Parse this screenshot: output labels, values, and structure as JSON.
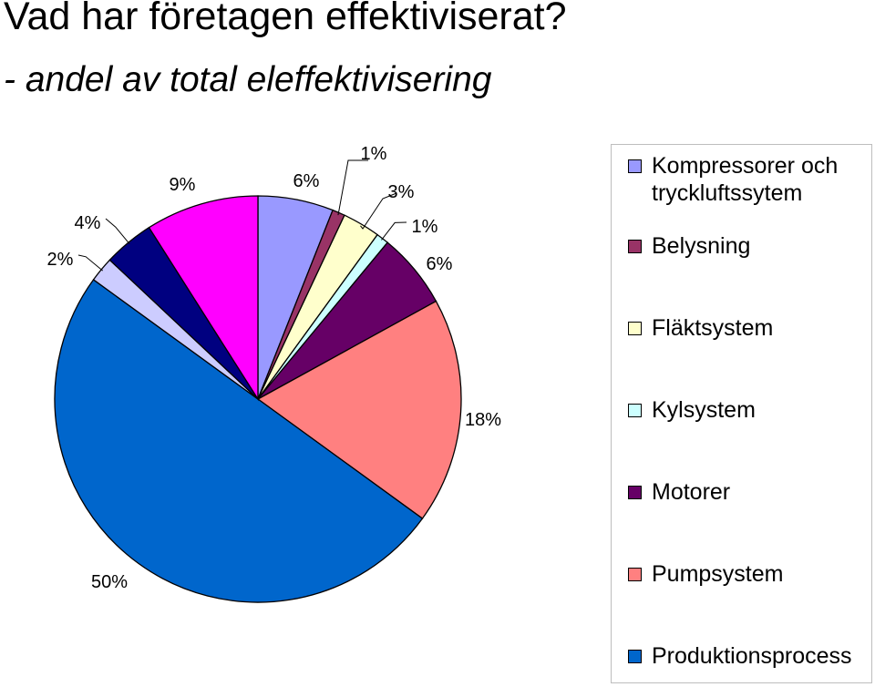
{
  "title": "Vad har företagen effektiviserat?",
  "subtitle": "- andel av total eleffektivisering",
  "chart_data": {
    "type": "pie",
    "series": [
      {
        "name": "Kompressorer och tryckluftssytem",
        "value": 6,
        "label": "6%",
        "color": "#9999FF"
      },
      {
        "name": "Belysning",
        "value": 1,
        "label": "1%",
        "color": "#993366"
      },
      {
        "name": "Fläktsystem",
        "value": 3,
        "label": "3%",
        "color": "#FFFFCC"
      },
      {
        "name": "Kylsystem",
        "value": 1,
        "label": "1%",
        "color": "#CCFFFF"
      },
      {
        "name": "Motorer",
        "value": 6,
        "label": "6%",
        "color": "#660066"
      },
      {
        "name": "Pumpsystem",
        "value": 18,
        "label": "18%",
        "color": "#FF8080"
      },
      {
        "name": "Produktionsprocess",
        "value": 50,
        "label": "50%",
        "color": "#0066CC"
      },
      {
        "name": "",
        "value": 2,
        "label": "2%",
        "color": "#CCCCFF"
      },
      {
        "name": "",
        "value": 4,
        "label": "4%",
        "color": "#000080"
      },
      {
        "name": "",
        "value": 9,
        "label": "9%",
        "color": "#FF00FF"
      }
    ],
    "start": "12 o'clock",
    "direction": "clockwise",
    "legend_position": "right"
  }
}
